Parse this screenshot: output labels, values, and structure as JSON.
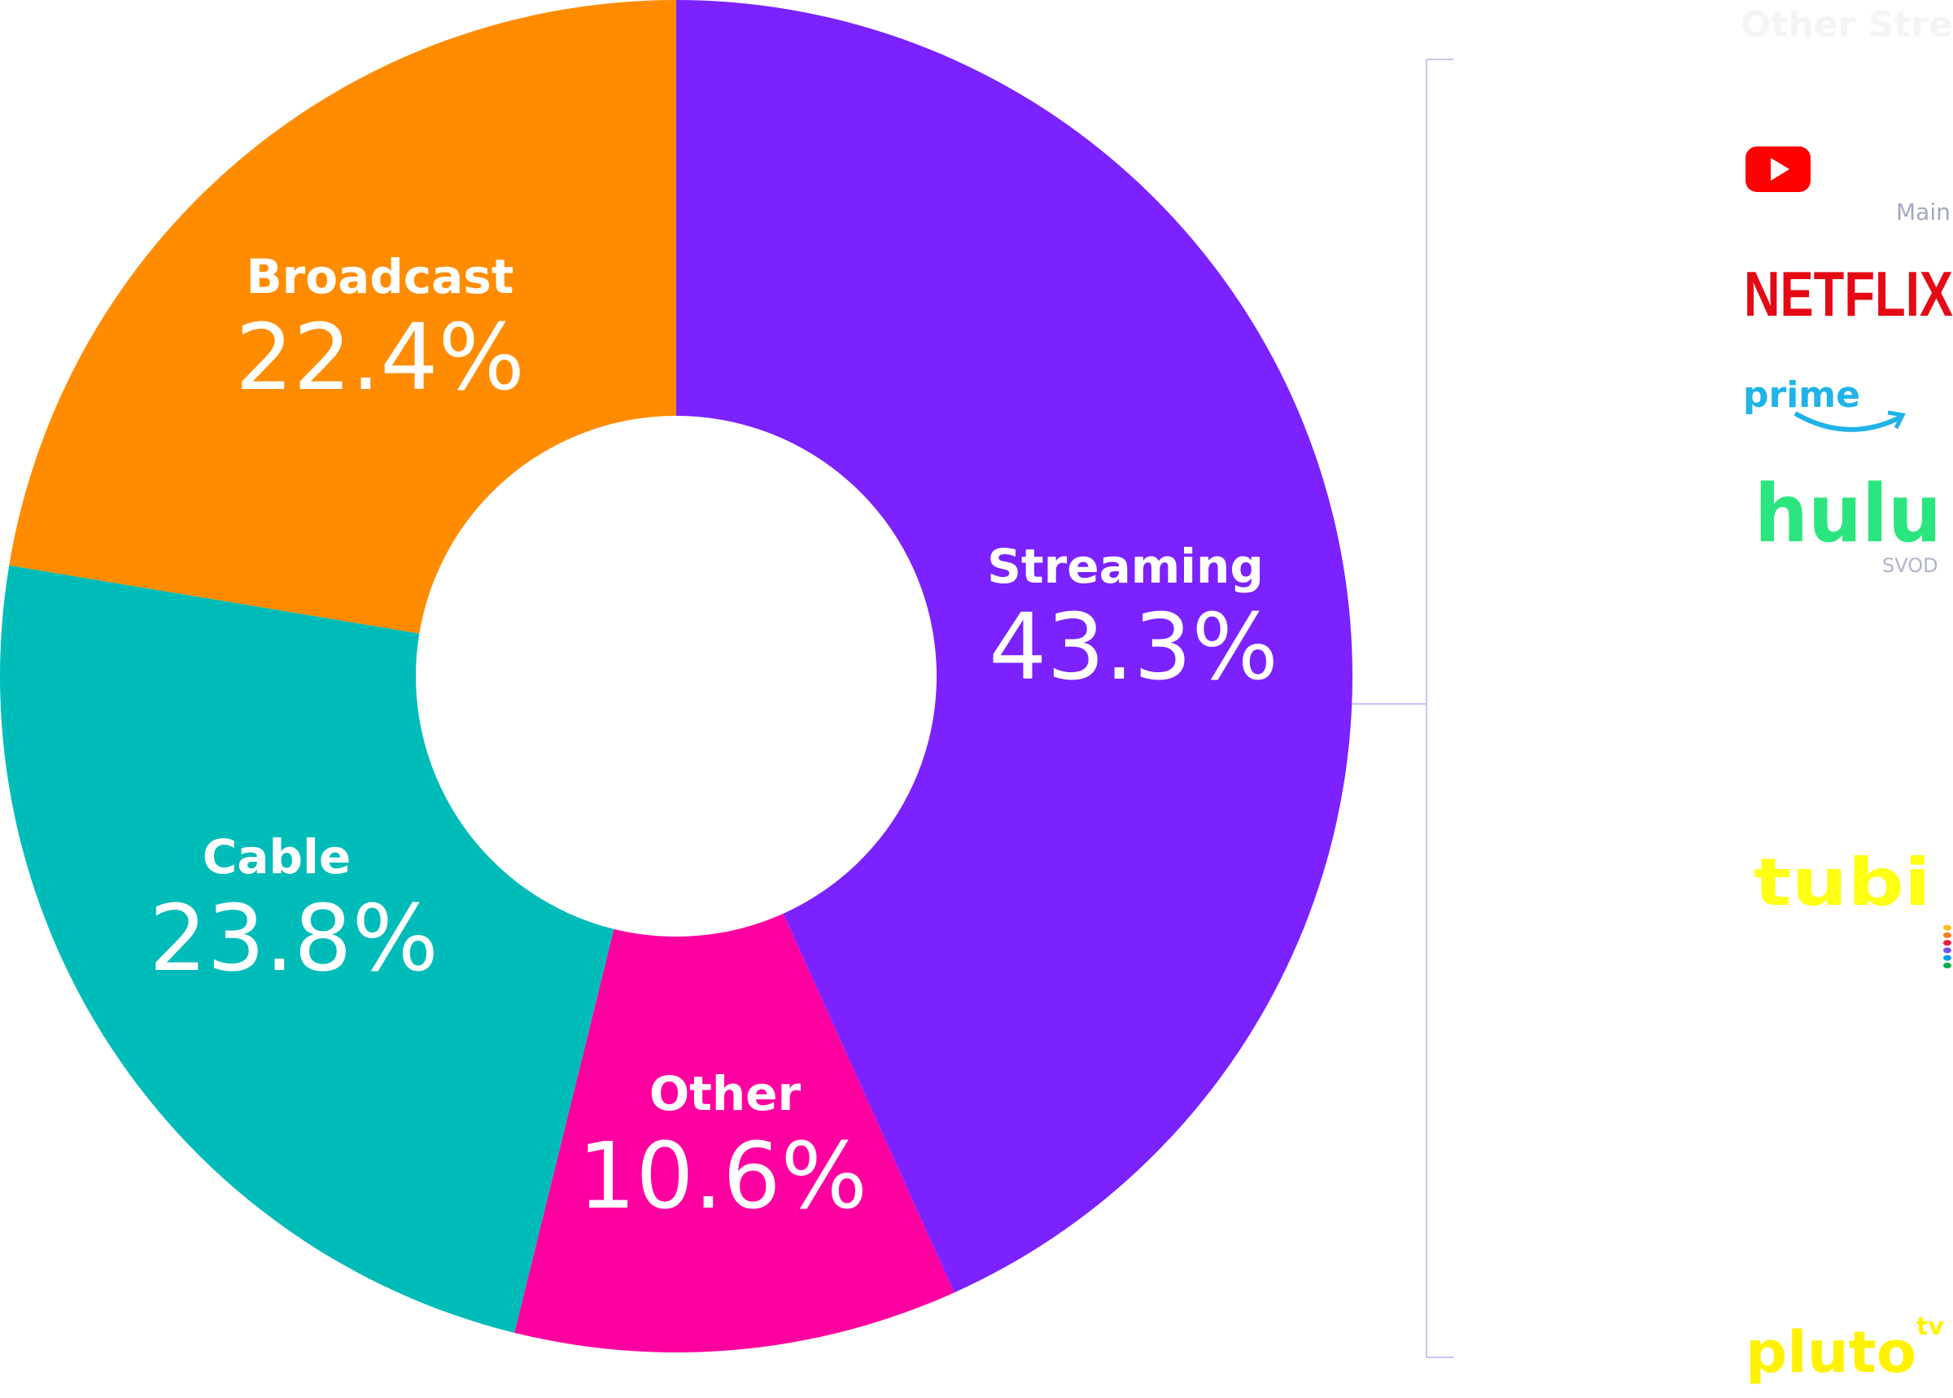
{
  "chart_data": {
    "type": "pie",
    "variant": "donut",
    "start": "top",
    "direction": "clockwise",
    "categories": [
      "Streaming",
      "Other",
      "Cable",
      "Broadcast"
    ],
    "values": [
      43.3,
      10.6,
      23.8,
      22.4
    ],
    "value_labels": [
      "43.3%",
      "10.6%",
      "23.8%",
      "22.4%"
    ],
    "colors": [
      "#7b22ff",
      "#ff00a0",
      "#00bcb9",
      "#ff8c00"
    ]
  },
  "streaming_breakdown": {
    "title": "Other Streaming",
    "bracket_color": "#c9c3f5",
    "logos": [
      {
        "name": "YouTube",
        "icon": "youtube-logo",
        "color": "#ff0000",
        "caption": "Main"
      },
      {
        "name": "NETFLIX",
        "icon": "netflix-logo",
        "color": "#e50914"
      },
      {
        "name": "prime",
        "icon": "prime-video-logo",
        "color": "#1fb3e8"
      },
      {
        "name": "hulu",
        "icon": "hulu-logo",
        "color": "#2be67f",
        "caption": "SVOD"
      },
      {
        "name": "tubi",
        "icon": "tubi-logo",
        "color": "#ffff14"
      },
      {
        "name": "Peacock",
        "icon": "peacock-dots-logo",
        "dot_colors": [
          "#f9c21a",
          "#fc7a1a",
          "#ee1a45",
          "#7355e0",
          "#0a9fe6",
          "#0fad4b"
        ]
      },
      {
        "name": "pluto",
        "superscript": "tv",
        "icon": "pluto-tv-logo",
        "color": "#fff200"
      }
    ]
  }
}
